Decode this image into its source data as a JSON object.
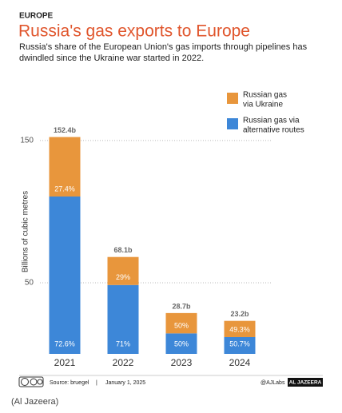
{
  "chart_data": {
    "type": "stacked-bar",
    "kicker": "EUROPE",
    "title": "Russia's gas exports to Europe",
    "subtitle": [
      "Russia's share of the European Union's gas imports through pipelines has",
      "dwindled since the Ukraine war started in 2022."
    ],
    "y_label": "Billions of cubic metres",
    "categories": [
      "2021",
      "2022",
      "2023",
      "2024"
    ],
    "series": [
      {
        "name": "Russian gas via alternative routes",
        "legend_lines": [
          "Russian gas via",
          "alternative routes"
        ],
        "color": "#3d87d8",
        "values": [
          110.6,
          48.4,
          14.4,
          11.8
        ],
        "share_labels": [
          "72.6%",
          "71%",
          "50%",
          "50.7%"
        ]
      },
      {
        "name": "Russian gas via Ukraine",
        "legend_lines": [
          "Russian gas",
          "via Ukraine"
        ],
        "color": "#e8963c",
        "values": [
          41.8,
          19.7,
          14.3,
          11.4
        ],
        "share_labels": [
          "27.4%",
          "29%",
          "50%",
          "49.3%"
        ]
      }
    ],
    "totals": [
      152.4,
      68.1,
      28.7,
      23.2
    ],
    "total_labels": [
      "152.4b",
      "68.1b",
      "28.7b",
      "23.2b"
    ],
    "ylim": [
      0,
      160
    ],
    "yticks": [
      50,
      150
    ],
    "grid": true,
    "source": "Source:  bruegel",
    "separator": "|",
    "date": "January 1, 2025",
    "handle": "@AJLabs",
    "brand": "AL JAZEERA",
    "caption": "(Al Jazeera)"
  }
}
